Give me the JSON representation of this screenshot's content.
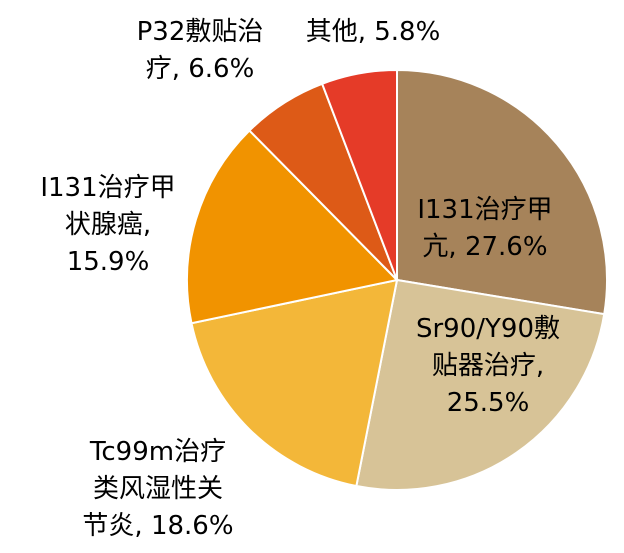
{
  "chart_data": {
    "type": "pie",
    "start": "12 o'clock",
    "direction": "clockwise",
    "legend": "none",
    "slices": [
      {
        "label": "I131治疗甲亢",
        "value": 27.6,
        "color": "#A6835A",
        "text_lines": [
          "I131治疗甲",
          "亢, 27.6%"
        ]
      },
      {
        "label": "Sr90/Y90敷贴器治疗",
        "value": 25.5,
        "color": "#D7C397",
        "text_lines": [
          "Sr90/Y90敷",
          "贴器治疗,",
          "25.5%"
        ]
      },
      {
        "label": "Tc99m治疗类风湿性关节炎",
        "value": 18.6,
        "color": "#F3B739",
        "text_lines": [
          "Tc99m治疗",
          "类风湿性关",
          "节炎, 18.6%"
        ]
      },
      {
        "label": "I131治疗甲状腺癌",
        "value": 15.9,
        "color": "#F19300",
        "text_lines": [
          "I131治疗甲",
          "状腺癌,",
          "15.9%"
        ]
      },
      {
        "label": "P32敷贴治疗",
        "value": 6.6,
        "color": "#DD5A17",
        "text_lines": [
          "P32敷贴治",
          "疗, 6.6%"
        ]
      },
      {
        "label": "其他",
        "value": 5.8,
        "color": "#E53B28",
        "text_lines": [
          "其他, 5.8%"
        ]
      }
    ]
  }
}
